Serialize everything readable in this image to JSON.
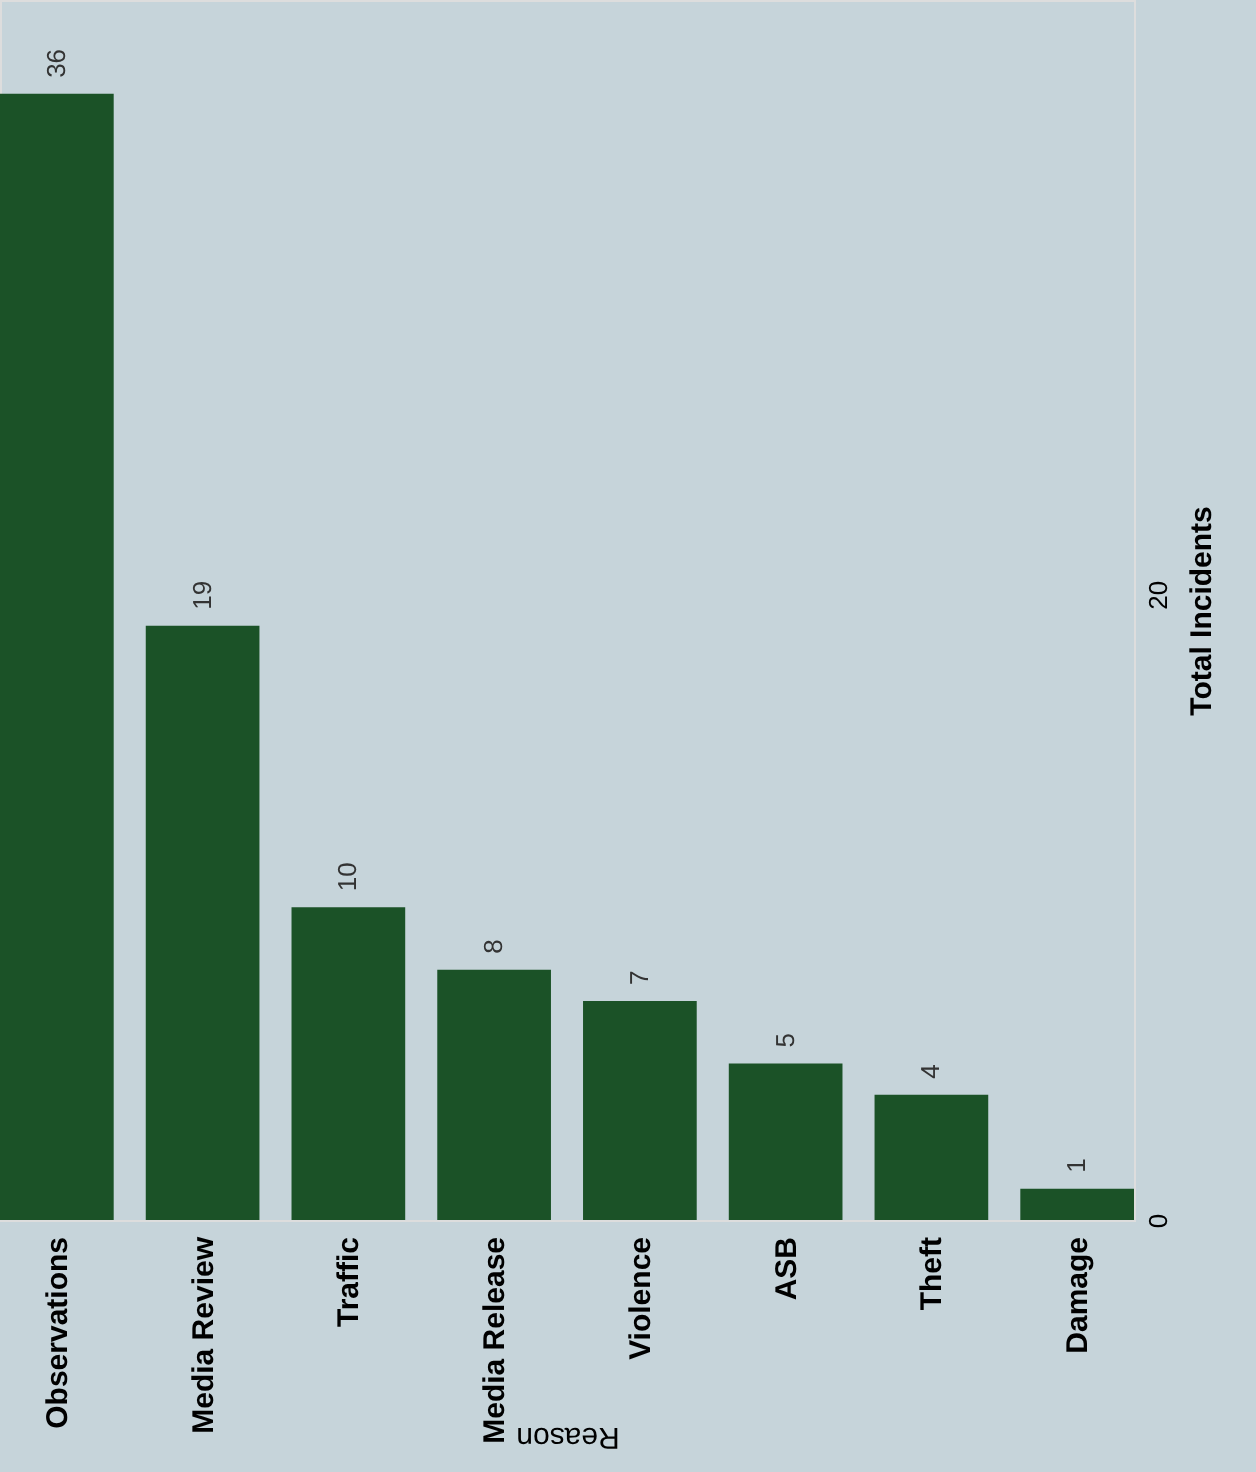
{
  "chart_data": {
    "type": "bar",
    "xlabel": "Reason",
    "ylabel": "Total Incidents",
    "categories": [
      "Observations",
      "Media Review",
      "Traffic",
      "Media Release",
      "Violence",
      "ASB",
      "Theft",
      "Damage"
    ],
    "values": [
      36,
      19,
      10,
      8,
      7,
      5,
      4,
      1
    ],
    "color": "#1b5227",
    "ylim": [
      0,
      39
    ],
    "yticks": [
      0,
      20
    ],
    "data_labels": true
  }
}
